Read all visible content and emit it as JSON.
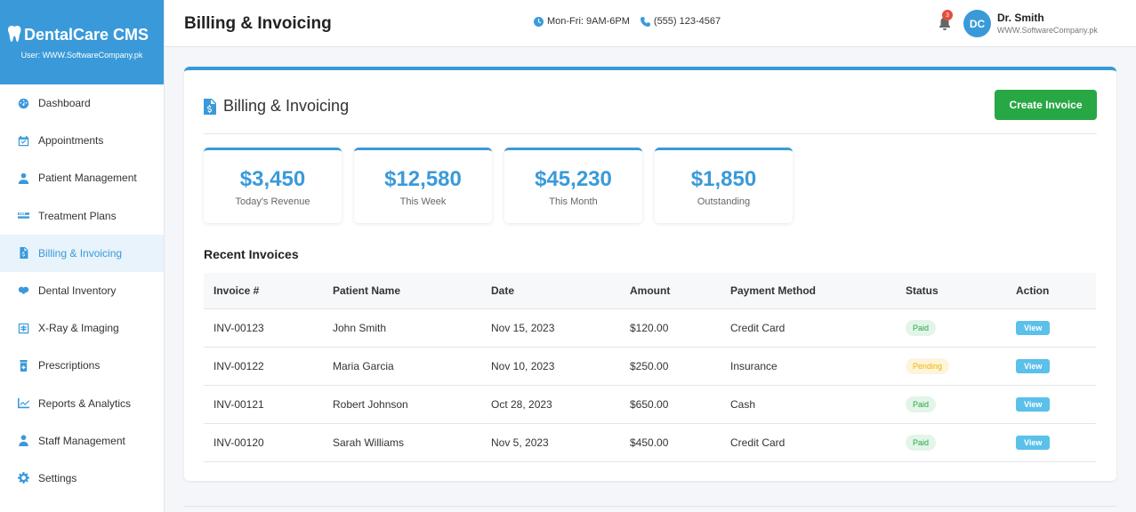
{
  "brand": {
    "name": "DentalCare CMS",
    "user": "User: WWW.SoftwareCompany.pk",
    "icon": "tooth-icon"
  },
  "sidebar": {
    "items": [
      {
        "label": "Dashboard",
        "icon": "dashboard-icon"
      },
      {
        "label": "Appointments",
        "icon": "calendar-icon"
      },
      {
        "label": "Patient Management",
        "icon": "patient-icon"
      },
      {
        "label": "Treatment Plans",
        "icon": "teeth-icon"
      },
      {
        "label": "Billing & Invoicing",
        "icon": "invoice-icon",
        "active": true
      },
      {
        "label": "Dental Inventory",
        "icon": "tooth-icon"
      },
      {
        "label": "X-Ray & Imaging",
        "icon": "xray-icon"
      },
      {
        "label": "Prescriptions",
        "icon": "prescription-icon"
      },
      {
        "label": "Reports & Analytics",
        "icon": "chart-icon"
      },
      {
        "label": "Staff Management",
        "icon": "staff-icon"
      },
      {
        "label": "Settings",
        "icon": "gear-icon"
      }
    ]
  },
  "header": {
    "title": "Billing & Invoicing",
    "hours": "Mon-Fri: 9AM-6PM",
    "phone": "(555) 123-4567",
    "notification_count": "3",
    "avatar_initials": "DC",
    "user_name": "Dr. Smith",
    "user_company": "WWW.SoftwareCompany.pk"
  },
  "main": {
    "title": "Billing & Invoicing",
    "create_button": "Create Invoice",
    "stats": [
      {
        "value": "$3,450",
        "label": "Today's Revenue"
      },
      {
        "value": "$12,580",
        "label": "This Week"
      },
      {
        "value": "$45,230",
        "label": "This Month"
      },
      {
        "value": "$1,850",
        "label": "Outstanding"
      }
    ],
    "recent_title": "Recent Invoices",
    "columns": [
      "Invoice #",
      "Patient Name",
      "Date",
      "Amount",
      "Payment Method",
      "Status",
      "Action"
    ],
    "rows": [
      {
        "invoice": "INV-00123",
        "patient": "John Smith",
        "date": "Nov 15, 2023",
        "amount": "$120.00",
        "method": "Credit Card",
        "status": "Paid",
        "action": "View"
      },
      {
        "invoice": "INV-00122",
        "patient": "Maria Garcia",
        "date": "Nov 10, 2023",
        "amount": "$250.00",
        "method": "Insurance",
        "status": "Pending",
        "action": "View"
      },
      {
        "invoice": "INV-00121",
        "patient": "Robert Johnson",
        "date": "Oct 28, 2023",
        "amount": "$650.00",
        "method": "Cash",
        "status": "Paid",
        "action": "View"
      },
      {
        "invoice": "INV-00120",
        "patient": "Sarah Williams",
        "date": "Nov 5, 2023",
        "amount": "$450.00",
        "method": "Credit Card",
        "status": "Paid",
        "action": "View"
      }
    ]
  },
  "colors": {
    "accent": "#3a9ad9",
    "success": "#28a745",
    "warning": "#f0b400",
    "info": "#5bc0ea"
  }
}
